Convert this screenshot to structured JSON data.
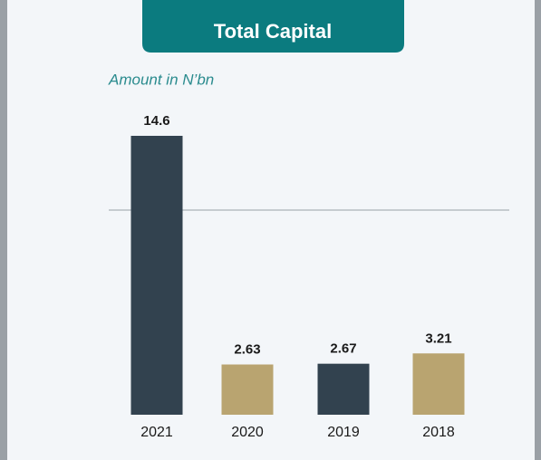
{
  "chart_data": {
    "type": "bar",
    "title": "Total Capital",
    "subtitle": "Amount in N’bn",
    "categories": [
      "2021",
      "2020",
      "2019",
      "2018"
    ],
    "values": [
      14.6,
      2.63,
      2.67,
      3.21
    ],
    "colors": [
      "#32424f",
      "#b9a470",
      "#32424f",
      "#b9a470"
    ]
  }
}
